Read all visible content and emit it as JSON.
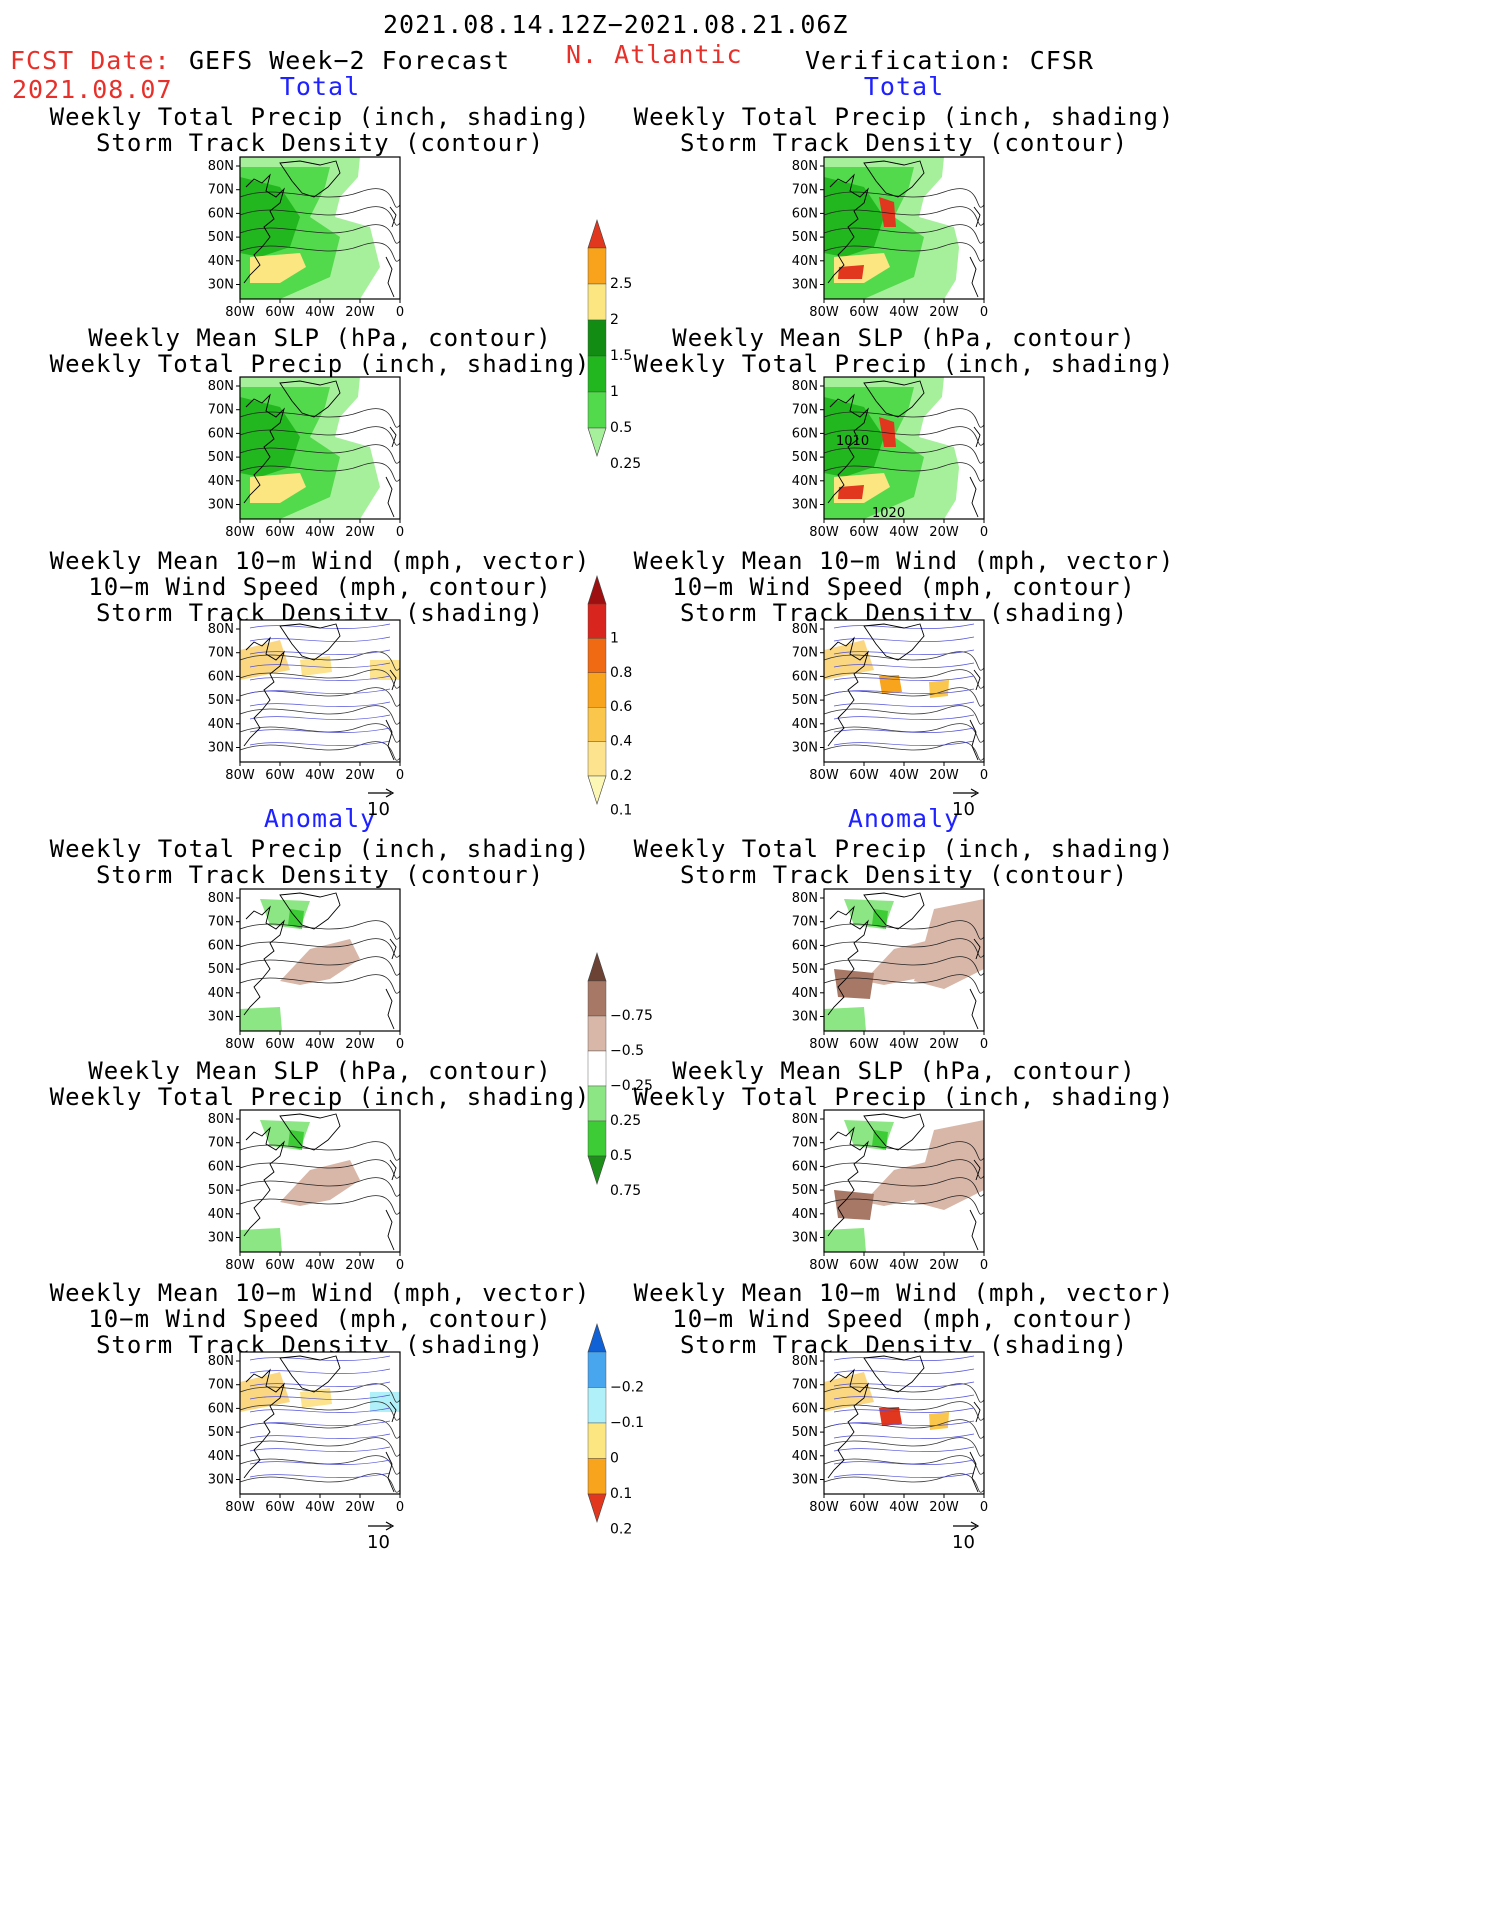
{
  "header": {
    "date_range": "2021.08.14.12Z−2021.08.21.06Z",
    "fcst_date_label": "FCST Date:",
    "fcst_date_value": "2021.08.07",
    "product_title": "GEFS Week−2 Forecast",
    "region": "N. Atlantic",
    "verification": "Verification: CFSR"
  },
  "sections": {
    "total": "Total",
    "anomaly": "Anomaly"
  },
  "titles": {
    "precip_track": [
      "Weekly Total Precip (inch, shading)",
      "Storm Track Density (contour)"
    ],
    "slp_precip": [
      "Weekly Mean SLP (hPa, contour)",
      "Weekly Total Precip (inch, shading)"
    ],
    "wind": [
      "Weekly Mean 10−m Wind (mph, vector)",
      "10−m Wind Speed (mph, contour)",
      "Storm Track Density (shading)"
    ]
  },
  "axes": {
    "lat_ticks": [
      "80N",
      "70N",
      "60N",
      "50N",
      "40N",
      "30N"
    ],
    "lon_ticks": [
      "80W",
      "60W",
      "40W",
      "20W",
      "0"
    ]
  },
  "contour_labels": {
    "slp_a": "1010",
    "slp_b": "1020"
  },
  "vector_ref": "10",
  "colorbars": {
    "precip_total": {
      "labels": [
        "0.25",
        "0.5",
        "1",
        "1.5",
        "2",
        "2.5"
      ],
      "colors": [
        "#a6f09c",
        "#53d94c",
        "#22b61f",
        "#128c12",
        "#fbe682",
        "#f9a21c",
        "#e0371e"
      ]
    },
    "track_total": {
      "labels": [
        "0.1",
        "0.2",
        "0.4",
        "0.6",
        "0.8",
        "1"
      ],
      "colors": [
        "#fdf7b6",
        "#fde38d",
        "#fac64b",
        "#f8a41c",
        "#f06a13",
        "#d8251d",
        "#9d0f10"
      ]
    },
    "precip_anom": {
      "labels": [
        "0.75",
        "0.5",
        "0.25",
        "−0.25",
        "−0.5",
        "−0.75"
      ],
      "colors": [
        "#1d8e1a",
        "#3dcc36",
        "#8ce683",
        "#ffffff",
        "#d9b7a8",
        "#a87867",
        "#6b4234"
      ]
    },
    "track_anom": {
      "labels": [
        "0.2",
        "0.1",
        "0",
        "−0.1",
        "−0.2"
      ],
      "colors": [
        "#e0371e",
        "#f8a41c",
        "#fbe682",
        "#b0f0f8",
        "#48a6ee",
        "#1060d6"
      ]
    }
  }
}
